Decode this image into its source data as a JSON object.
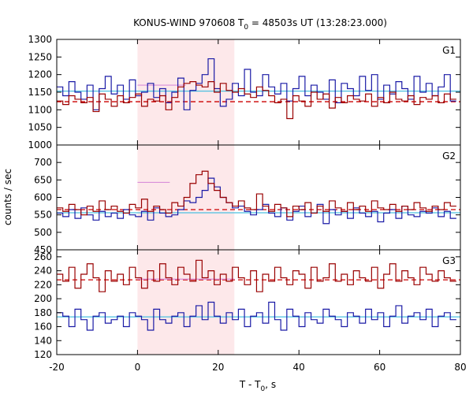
{
  "chart_data": {
    "type": "line",
    "title": "KONUS-WIND 970608 T",
    "title_sub": "0",
    "title_rest": " = 48503s UT (13:28:23.000)",
    "xlabel": "T - T",
    "xlabel_sub": "0",
    "xlabel_rest": ", s",
    "ylabel": "counts / sec",
    "xlim": [
      -20,
      80
    ],
    "x_ticks": [
      -20,
      0,
      20,
      40,
      60,
      80
    ],
    "shaded_interval": [
      0,
      24
    ],
    "bin_width": 1.5,
    "colors": {
      "shade": "#fde8ea",
      "dark_red": "#990000",
      "blue": "#1a1aa6",
      "pink": "#d98ed9",
      "light_blue": "#4cc0e0",
      "background_fit": "#cc0000"
    },
    "panels": [
      {
        "name": "G1",
        "ylim": [
          1000,
          1300
        ],
        "y_ticks": [
          1000,
          1050,
          1100,
          1150,
          1200,
          1250,
          1300
        ],
        "series": [
          {
            "color_key": "blue",
            "values": [
              1165,
              1140,
              1180,
              1150,
              1130,
              1170,
              1100,
              1160,
              1195,
              1145,
              1170,
              1130,
              1185,
              1140,
              1150,
              1175,
              1135,
              1160,
              1120,
              1150,
              1190,
              1100,
              1155,
              1175,
              1200,
              1245,
              1160,
              1110,
              1130,
              1175,
              1140,
              1215,
              1150,
              1140,
              1200,
              1165,
              1145,
              1175,
              1125,
              1160,
              1195,
              1140,
              1170,
              1150,
              1130,
              1185,
              1120,
              1175,
              1160,
              1140,
              1195,
              1155,
              1200,
              1130,
              1170,
              1145,
              1180,
              1160,
              1130,
              1195,
              1150,
              1175,
              1140,
              1165,
              1200,
              1125
            ]
          },
          {
            "color_key": "dark_red",
            "values": [
              1125,
              1115,
              1140,
              1130,
              1120,
              1135,
              1095,
              1145,
              1130,
              1110,
              1140,
              1120,
              1135,
              1145,
              1110,
              1130,
              1125,
              1140,
              1100,
              1135,
              1165,
              1175,
              1180,
              1170,
              1165,
              1180,
              1150,
              1175,
              1155,
              1150,
              1160,
              1145,
              1135,
              1165,
              1155,
              1140,
              1120,
              1130,
              1075,
              1140,
              1125,
              1110,
              1150,
              1130,
              1145,
              1105,
              1135,
              1120,
              1140,
              1130,
              1125,
              1145,
              1110,
              1135,
              1120,
              1150,
              1130,
              1125,
              1140,
              1115,
              1135,
              1130,
              1140,
              1120,
              1145,
              1130
            ]
          }
        ],
        "fit_lines": [
          {
            "color_key": "light_blue",
            "value": 1153,
            "dashed": false
          },
          {
            "color_key": "background_fit",
            "value": 1123,
            "dashed": true
          }
        ],
        "box": {
          "color_key": "pink",
          "x": [
            0,
            12
          ],
          "value": 1170
        }
      },
      {
        "name": "G2",
        "ylim": [
          450,
          750
        ],
        "y_ticks": [
          450,
          500,
          550,
          600,
          650,
          700
        ],
        "series": [
          {
            "color_key": "blue",
            "values": [
              555,
              545,
              565,
              540,
              570,
              550,
              535,
              560,
              545,
              555,
              540,
              565,
              550,
              545,
              560,
              535,
              570,
              555,
              545,
              550,
              565,
              590,
              585,
              600,
              620,
              655,
              630,
              600,
              585,
              570,
              575,
              560,
              550,
              565,
              580,
              555,
              545,
              570,
              535,
              560,
              575,
              545,
              555,
              580,
              525,
              565,
              550,
              560,
              540,
              570,
              555,
              545,
              560,
              530,
              555,
              565,
              540,
              575,
              550,
              545,
              560,
              555,
              570,
              545,
              560,
              540
            ]
          },
          {
            "color_key": "dark_red",
            "values": [
              570,
              560,
              580,
              565,
              550,
              575,
              560,
              590,
              565,
              575,
              560,
              555,
              580,
              570,
              595,
              560,
              575,
              565,
              555,
              585,
              575,
              600,
              640,
              665,
              675,
              640,
              620,
              600,
              585,
              575,
              590,
              570,
              565,
              610,
              575,
              560,
              580,
              570,
              545,
              575,
              565,
              585,
              555,
              575,
              560,
              590,
              570,
              560,
              585,
              565,
              575,
              560,
              590,
              570,
              565,
              580,
              560,
              575,
              565,
              585,
              570,
              560,
              575,
              565,
              585,
              575
            ]
          }
        ],
        "fit_lines": [
          {
            "color_key": "light_blue",
            "value": 556,
            "dashed": false
          },
          {
            "color_key": "background_fit",
            "value": 565,
            "dashed": true
          }
        ],
        "box": {
          "color_key": "pink",
          "x": [
            0,
            8
          ],
          "value": 643
        }
      },
      {
        "name": "G3",
        "ylim": [
          120,
          270
        ],
        "y_ticks": [
          120,
          140,
          160,
          180,
          200,
          220,
          240,
          260
        ],
        "series": [
          {
            "color_key": "blue",
            "values": [
              180,
              175,
              160,
              185,
              170,
              155,
              175,
              180,
              165,
              170,
              175,
              160,
              180,
              175,
              170,
              155,
              185,
              170,
              165,
              175,
              180,
              160,
              175,
              190,
              170,
              195,
              175,
              165,
              180,
              170,
              185,
              160,
              175,
              180,
              165,
              195,
              170,
              155,
              185,
              175,
              160,
              180,
              170,
              165,
              185,
              175,
              170,
              160,
              180,
              175,
              165,
              185,
              170,
              180,
              160,
              175,
              190,
              165,
              175,
              180,
              170,
              185,
              160,
              175,
              180,
              170
            ]
          },
          {
            "color_key": "dark_red",
            "values": [
              235,
              225,
              245,
              215,
              235,
              250,
              230,
              210,
              240,
              225,
              235,
              220,
              245,
              230,
              215,
              240,
              225,
              250,
              230,
              220,
              245,
              235,
              225,
              255,
              230,
              240,
              220,
              235,
              225,
              245,
              230,
              220,
              240,
              210,
              235,
              225,
              245,
              230,
              220,
              240,
              235,
              215,
              245,
              225,
              230,
              250,
              225,
              235,
              220,
              240,
              230,
              225,
              245,
              215,
              235,
              250,
              225,
              240,
              230,
              220,
              245,
              235,
              225,
              240,
              230,
              225
            ]
          }
        ],
        "fit_lines": [
          {
            "color_key": "light_blue",
            "value": 174,
            "dashed": false
          },
          {
            "color_key": "background_fit",
            "value": 227,
            "dashed": true
          }
        ],
        "box": {
          "color_key": "pink",
          "x": [
            0,
            24
          ],
          "value": 228
        }
      }
    ]
  }
}
